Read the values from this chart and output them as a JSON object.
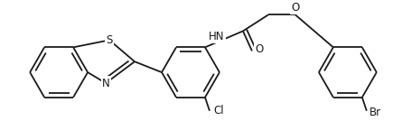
{
  "bg_color": "#ffffff",
  "line_color": "#1a1a1a",
  "line_width": 1.3,
  "font_size": 8.5,
  "figsize": [
    4.45,
    1.55
  ],
  "dpi": 100,
  "xlim": [
    0,
    445
  ],
  "ylim": [
    0,
    155
  ]
}
